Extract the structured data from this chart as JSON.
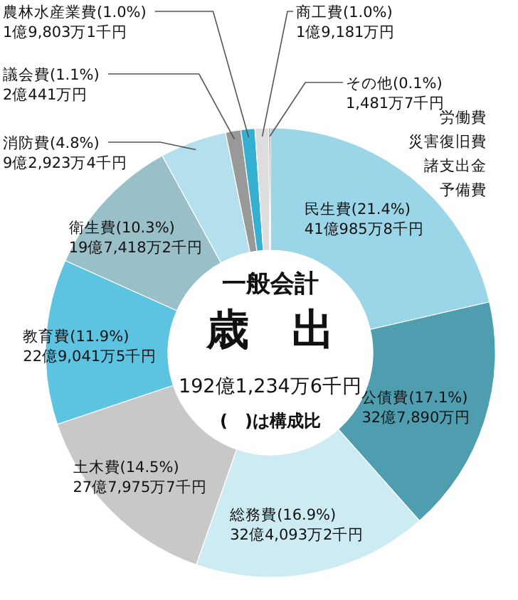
{
  "chart_data": {
    "type": "donut",
    "title": "一般会計",
    "subtitle": "歳　出",
    "categories": [
      "民生費",
      "公債費",
      "総務費",
      "土木費",
      "教育費",
      "衛生費",
      "消防費",
      "議会費",
      "農林水産業費",
      "商工費",
      "その他"
    ],
    "values": [
      21.4,
      17.1,
      16.9,
      14.5,
      11.9,
      10.3,
      4.8,
      1.1,
      1.0,
      1.0,
      0.1
    ],
    "colors": [
      "#9ad6e8",
      "#4f9eb0",
      "#cdebf3",
      "#c8c8c8",
      "#5cc3e0",
      "#99bfc9",
      "#b4e0ee",
      "#999999",
      "#36b0d0",
      "#dddddd",
      "#444444"
    ],
    "value_labels": [
      "(21.4%)\n41億985万8千円",
      "(17.1%)\n32億7,890万円",
      "(16.9%)\n32億4,093万2千円",
      "(14.5%)\n27億7,975万7千円",
      "(11.9%)\n22億9,041万5千円",
      "(10.3%)\n19億7,418万2千円",
      "(4.8%)\n9億2,923万4千円",
      "(1.1%)\n2億441万円",
      "(1.0%)\n1億9,803万1千円",
      "(1.0%)\n1億9,181万円",
      "(0.1%)\n1,481万7千円"
    ],
    "annotations": [
      "192億1,234万6千円",
      "(　)は構成比",
      "労働費",
      "災害復旧費",
      "諸支出金",
      "予備費"
    ]
  }
}
